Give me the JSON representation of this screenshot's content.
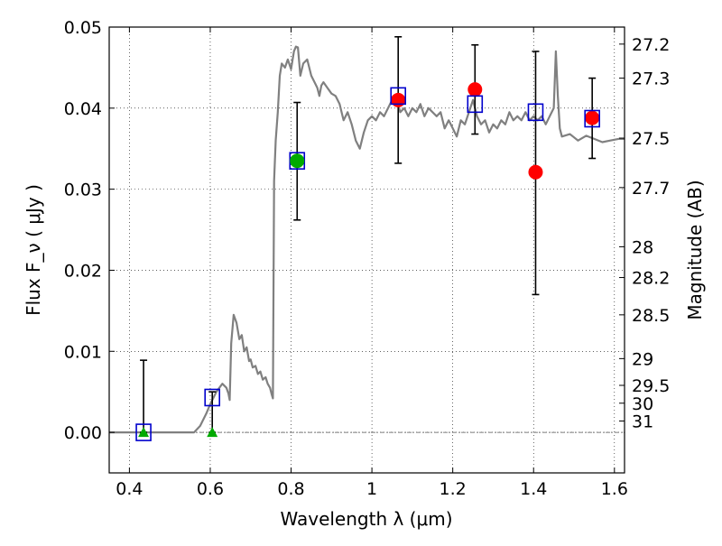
{
  "chart_data": {
    "type": "scatter",
    "xlabel": "Wavelength  λ (μm)",
    "ylabel": "Flux  F_ν  ( μJy )",
    "y2label": "Magnitude (AB)",
    "xlim": [
      0.35,
      1.625
    ],
    "ylim": [
      -0.005,
      0.05
    ],
    "grid": true,
    "x_ticks": [
      {
        "v": 0.4,
        "label": "0.4"
      },
      {
        "v": 0.6,
        "label": "0.6"
      },
      {
        "v": 0.8,
        "label": "0.8"
      },
      {
        "v": 1.0,
        "label": "1"
      },
      {
        "v": 1.2,
        "label": "1.2"
      },
      {
        "v": 1.4,
        "label": "1.4"
      },
      {
        "v": 1.6,
        "label": "1.6"
      }
    ],
    "y_ticks": [
      {
        "v": 0.0,
        "label": "0.00"
      },
      {
        "v": 0.01,
        "label": "0.01"
      },
      {
        "v": 0.02,
        "label": "0.02"
      },
      {
        "v": 0.03,
        "label": "0.03"
      },
      {
        "v": 0.04,
        "label": "0.04"
      },
      {
        "v": 0.05,
        "label": "0.05"
      }
    ],
    "mag_ticks": [
      {
        "flux": 0.0479,
        "label": "27.2"
      },
      {
        "flux": 0.0437,
        "label": "27.3"
      },
      {
        "flux": 0.0363,
        "label": "27.5"
      },
      {
        "flux": 0.0302,
        "label": "27.7"
      },
      {
        "flux": 0.0229,
        "label": "28"
      },
      {
        "flux": 0.0191,
        "label": "28.2"
      },
      {
        "flux": 0.0145,
        "label": "28.5"
      },
      {
        "flux": 0.0091,
        "label": "29"
      },
      {
        "flux": 0.0058,
        "label": "29.5"
      },
      {
        "flux": 0.0036,
        "label": "30"
      },
      {
        "flux": 0.0014,
        "label": "31"
      }
    ],
    "model_spectrum": {
      "color": "#808080",
      "points": [
        [
          0.35,
          0.0
        ],
        [
          0.56,
          0.0
        ],
        [
          0.575,
          0.0008
        ],
        [
          0.59,
          0.0023
        ],
        [
          0.6,
          0.0035
        ],
        [
          0.615,
          0.005
        ],
        [
          0.63,
          0.006
        ],
        [
          0.64,
          0.0055
        ],
        [
          0.645,
          0.0048
        ],
        [
          0.648,
          0.004
        ],
        [
          0.652,
          0.011
        ],
        [
          0.658,
          0.0145
        ],
        [
          0.665,
          0.0135
        ],
        [
          0.672,
          0.0115
        ],
        [
          0.678,
          0.012
        ],
        [
          0.684,
          0.01
        ],
        [
          0.69,
          0.0105
        ],
        [
          0.696,
          0.0088
        ],
        [
          0.7,
          0.009
        ],
        [
          0.705,
          0.008
        ],
        [
          0.712,
          0.0082
        ],
        [
          0.718,
          0.0072
        ],
        [
          0.724,
          0.0075
        ],
        [
          0.73,
          0.0065
        ],
        [
          0.737,
          0.0068
        ],
        [
          0.742,
          0.006
        ],
        [
          0.748,
          0.0055
        ],
        [
          0.752,
          0.0047
        ],
        [
          0.755,
          0.0042
        ],
        [
          0.758,
          0.031
        ],
        [
          0.762,
          0.036
        ],
        [
          0.767,
          0.0395
        ],
        [
          0.772,
          0.044
        ],
        [
          0.777,
          0.0455
        ],
        [
          0.785,
          0.045
        ],
        [
          0.792,
          0.046
        ],
        [
          0.8,
          0.0448
        ],
        [
          0.807,
          0.047
        ],
        [
          0.812,
          0.0476
        ],
        [
          0.817,
          0.0475
        ],
        [
          0.823,
          0.044
        ],
        [
          0.83,
          0.0455
        ],
        [
          0.84,
          0.046
        ],
        [
          0.85,
          0.044
        ],
        [
          0.86,
          0.043
        ],
        [
          0.865,
          0.0425
        ],
        [
          0.87,
          0.0415
        ],
        [
          0.875,
          0.0428
        ],
        [
          0.88,
          0.0432
        ],
        [
          0.89,
          0.0425
        ],
        [
          0.9,
          0.0418
        ],
        [
          0.91,
          0.0415
        ],
        [
          0.92,
          0.0405
        ],
        [
          0.93,
          0.0385
        ],
        [
          0.94,
          0.0395
        ],
        [
          0.95,
          0.038
        ],
        [
          0.96,
          0.036
        ],
        [
          0.97,
          0.035
        ],
        [
          0.98,
          0.037
        ],
        [
          0.99,
          0.0385
        ],
        [
          1.0,
          0.039
        ],
        [
          1.01,
          0.0385
        ],
        [
          1.02,
          0.0395
        ],
        [
          1.03,
          0.039
        ],
        [
          1.04,
          0.04
        ],
        [
          1.05,
          0.041
        ],
        [
          1.06,
          0.0415
        ],
        [
          1.07,
          0.0395
        ],
        [
          1.08,
          0.04
        ],
        [
          1.09,
          0.039
        ],
        [
          1.1,
          0.04
        ],
        [
          1.11,
          0.0395
        ],
        [
          1.12,
          0.0405
        ],
        [
          1.13,
          0.039
        ],
        [
          1.14,
          0.04
        ],
        [
          1.15,
          0.0395
        ],
        [
          1.16,
          0.039
        ],
        [
          1.17,
          0.0395
        ],
        [
          1.18,
          0.0375
        ],
        [
          1.19,
          0.0385
        ],
        [
          1.2,
          0.0375
        ],
        [
          1.21,
          0.0365
        ],
        [
          1.22,
          0.0385
        ],
        [
          1.23,
          0.038
        ],
        [
          1.24,
          0.0395
        ],
        [
          1.25,
          0.041
        ],
        [
          1.26,
          0.039
        ],
        [
          1.27,
          0.038
        ],
        [
          1.28,
          0.0385
        ],
        [
          1.29,
          0.037
        ],
        [
          1.3,
          0.038
        ],
        [
          1.31,
          0.0375
        ],
        [
          1.32,
          0.0385
        ],
        [
          1.33,
          0.038
        ],
        [
          1.34,
          0.0395
        ],
        [
          1.35,
          0.0385
        ],
        [
          1.36,
          0.039
        ],
        [
          1.37,
          0.0385
        ],
        [
          1.38,
          0.0395
        ],
        [
          1.39,
          0.0385
        ],
        [
          1.4,
          0.039
        ],
        [
          1.41,
          0.0385
        ],
        [
          1.42,
          0.039
        ],
        [
          1.43,
          0.038
        ],
        [
          1.44,
          0.039
        ],
        [
          1.45,
          0.04
        ],
        [
          1.455,
          0.047
        ],
        [
          1.46,
          0.0415
        ],
        [
          1.465,
          0.0375
        ],
        [
          1.47,
          0.0365
        ],
        [
          1.49,
          0.0368
        ],
        [
          1.51,
          0.036
        ],
        [
          1.53,
          0.0366
        ],
        [
          1.55,
          0.0362
        ],
        [
          1.57,
          0.0358
        ],
        [
          1.59,
          0.036
        ],
        [
          1.61,
          0.0362
        ],
        [
          1.625,
          0.0362
        ]
      ]
    },
    "series": [
      {
        "marker": "red-circle",
        "color": "#ff0000",
        "points": [
          {
            "x": 1.065,
            "y": 0.041
          },
          {
            "x": 1.255,
            "y": 0.0423
          },
          {
            "x": 1.405,
            "y": 0.0321
          },
          {
            "x": 1.545,
            "y": 0.0388
          }
        ]
      },
      {
        "marker": "blue-square",
        "color": "#0000cc",
        "points": [
          {
            "x": 0.435,
            "y": 0.0
          },
          {
            "x": 0.605,
            "y": 0.0043
          },
          {
            "x": 0.815,
            "y": 0.0335
          },
          {
            "x": 1.065,
            "y": 0.0415
          },
          {
            "x": 1.255,
            "y": 0.0405
          },
          {
            "x": 1.405,
            "y": 0.0395
          },
          {
            "x": 1.545,
            "y": 0.0387
          }
        ]
      },
      {
        "marker": "green-circle",
        "color": "#00aa00",
        "points": [
          {
            "x": 0.815,
            "y": 0.0335
          }
        ]
      },
      {
        "marker": "green-triangle",
        "color": "#00aa00",
        "points": [
          {
            "x": 0.435,
            "y": 0.0
          },
          {
            "x": 0.605,
            "y": 0.0
          }
        ]
      }
    ],
    "error_bars": [
      {
        "x": 0.435,
        "lo": 0.0,
        "hi": 0.0089
      },
      {
        "x": 0.605,
        "lo": 0.0,
        "hi": 0.005
      },
      {
        "x": 0.815,
        "lo": 0.0262,
        "hi": 0.0407
      },
      {
        "x": 1.065,
        "lo": 0.0332,
        "hi": 0.0488
      },
      {
        "x": 1.255,
        "lo": 0.0368,
        "hi": 0.0478
      },
      {
        "x": 1.405,
        "lo": 0.017,
        "hi": 0.047
      },
      {
        "x": 1.545,
        "lo": 0.0338,
        "hi": 0.0437
      }
    ]
  }
}
